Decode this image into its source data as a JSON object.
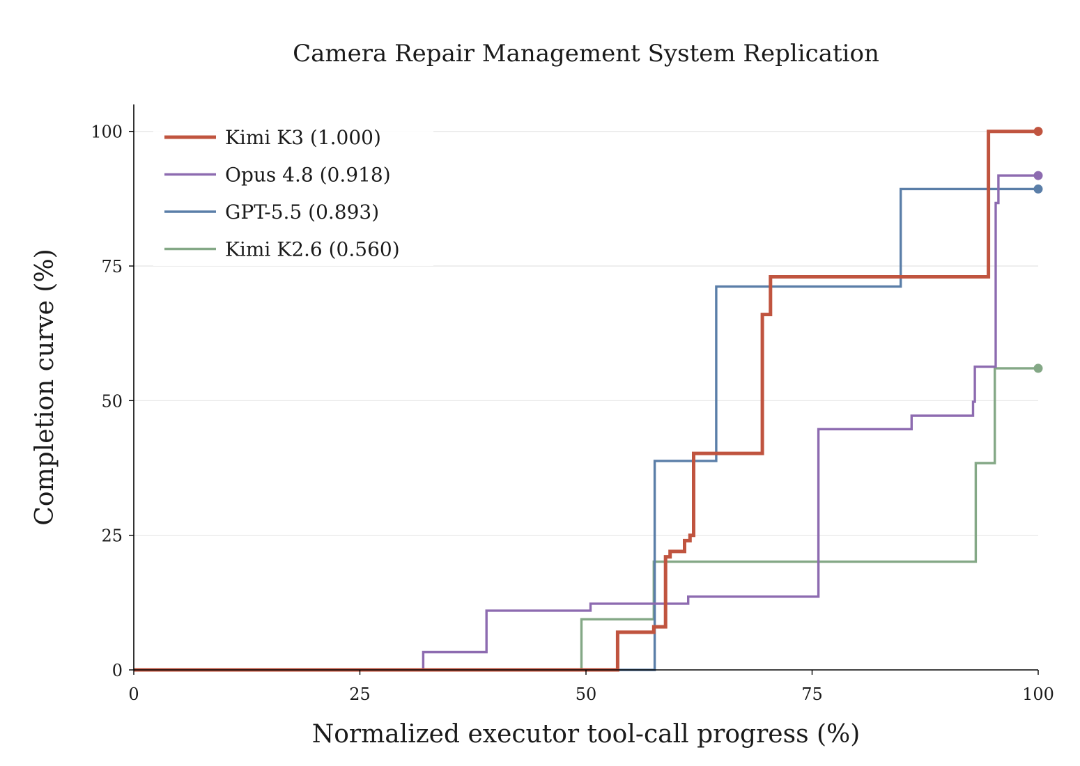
{
  "chart_data": {
    "type": "line",
    "step": true,
    "title": "Camera Repair Management System Replication",
    "xlabel": "Normalized executor tool-call progress (%)",
    "ylabel": "Completion curve (%)",
    "xlim": [
      0,
      100
    ],
    "ylim": [
      0,
      105
    ],
    "xticks": [
      0,
      25,
      50,
      75,
      100
    ],
    "yticks": [
      0,
      25,
      50,
      75,
      100
    ],
    "xtick_labels": [
      "0",
      "25",
      "50",
      "75",
      "100"
    ],
    "ytick_labels": [
      "0",
      "25",
      "50",
      "75",
      "100"
    ],
    "grid": "horizontal",
    "legend_position": "top-left",
    "series": [
      {
        "name": "Kimi K3 (1.000)",
        "color": "#c0543f",
        "bold": true,
        "points": [
          [
            0,
            0
          ],
          [
            53.5,
            0
          ],
          [
            53.5,
            7
          ],
          [
            57.5,
            7
          ],
          [
            57.5,
            8
          ],
          [
            58.8,
            8
          ],
          [
            58.8,
            21
          ],
          [
            59.3,
            21
          ],
          [
            59.3,
            22
          ],
          [
            60.9,
            22
          ],
          [
            60.9,
            24
          ],
          [
            61.5,
            24
          ],
          [
            61.5,
            25
          ],
          [
            61.9,
            25
          ],
          [
            61.9,
            40.2
          ],
          [
            69.5,
            40.2
          ],
          [
            69.5,
            66
          ],
          [
            70.4,
            66
          ],
          [
            70.4,
            73
          ],
          [
            94.5,
            73
          ],
          [
            94.5,
            100
          ],
          [
            100,
            100
          ]
        ]
      },
      {
        "name": "Opus 4.8 (0.918)",
        "color": "#8d6bb0",
        "bold": false,
        "points": [
          [
            0,
            0
          ],
          [
            32.0,
            0
          ],
          [
            32.0,
            3.3
          ],
          [
            39.0,
            3.3
          ],
          [
            39.0,
            11
          ],
          [
            50.5,
            11
          ],
          [
            50.5,
            12.3
          ],
          [
            61.3,
            12.3
          ],
          [
            61.3,
            13.6
          ],
          [
            75.7,
            13.6
          ],
          [
            75.7,
            44.7
          ],
          [
            86.0,
            44.7
          ],
          [
            86.0,
            47.2
          ],
          [
            92.8,
            47.2
          ],
          [
            92.8,
            49.8
          ],
          [
            93.0,
            49.8
          ],
          [
            93.0,
            56.3
          ],
          [
            95.3,
            56.3
          ],
          [
            95.3,
            86.7
          ],
          [
            95.6,
            86.7
          ],
          [
            95.6,
            91.8
          ],
          [
            100,
            91.8
          ]
        ]
      },
      {
        "name": "GPT-5.5 (0.893)",
        "color": "#5a7ea8",
        "bold": false,
        "points": [
          [
            0,
            0
          ],
          [
            57.6,
            0
          ],
          [
            57.6,
            38.8
          ],
          [
            64.4,
            38.8
          ],
          [
            64.4,
            71.2
          ],
          [
            84.8,
            71.2
          ],
          [
            84.8,
            89.3
          ],
          [
            100,
            89.3
          ]
        ]
      },
      {
        "name": "Kimi K2.6 (0.560)",
        "color": "#84a886",
        "bold": false,
        "points": [
          [
            0,
            0
          ],
          [
            49.5,
            0
          ],
          [
            49.5,
            9.4
          ],
          [
            57.5,
            9.4
          ],
          [
            57.5,
            20.1
          ],
          [
            93.1,
            20.1
          ],
          [
            93.1,
            38.4
          ],
          [
            95.2,
            38.4
          ],
          [
            95.2,
            56
          ],
          [
            100,
            56
          ]
        ]
      }
    ]
  }
}
